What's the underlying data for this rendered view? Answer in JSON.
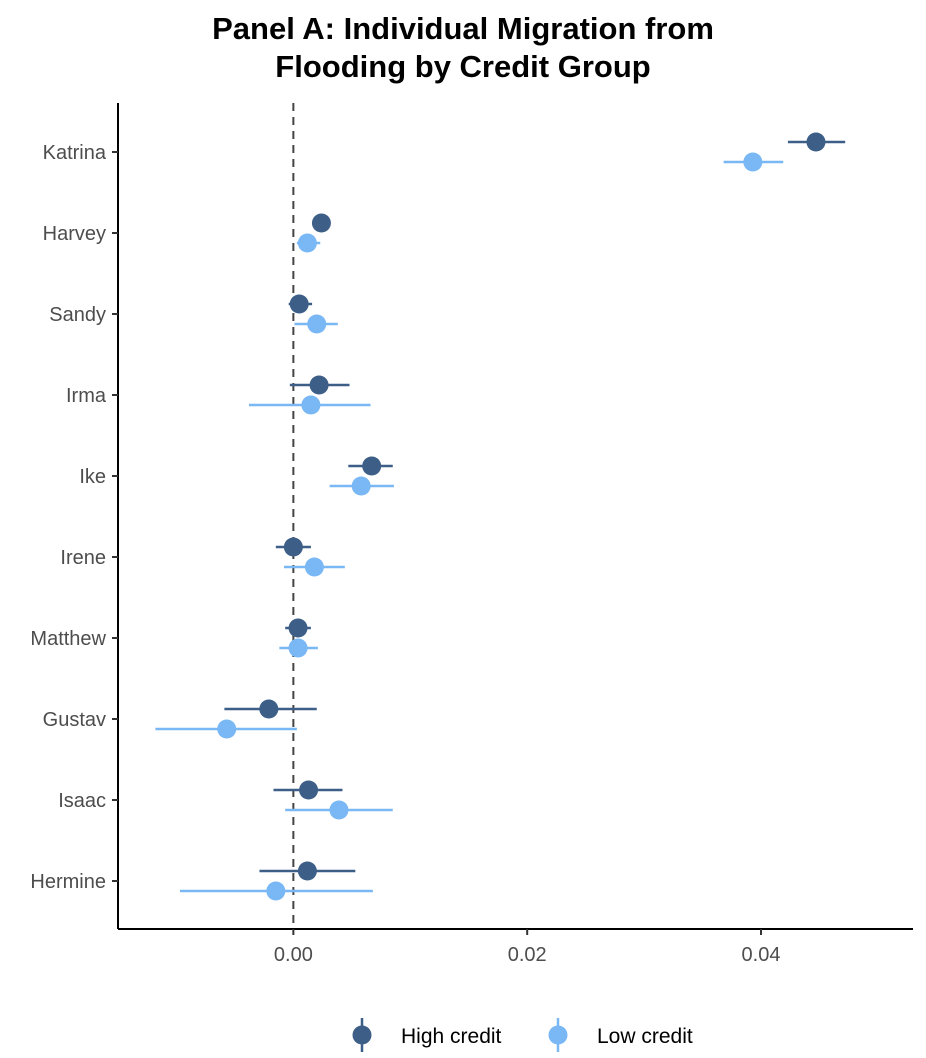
{
  "chart_data": {
    "type": "scatter",
    "subtype": "coefficient-plot-with-error-bars",
    "title": "Panel A: Individual Migration from Flooding by Credit Group",
    "title_lines": [
      "Panel A: Individual Migration from",
      "Flooding by Credit Group"
    ],
    "xlabel": "",
    "ylabel": "",
    "xlim": [
      -0.015,
      0.053
    ],
    "xticks": [
      0.0,
      0.02,
      0.04
    ],
    "xtick_labels": [
      "0.00",
      "0.02",
      "0.04"
    ],
    "reference_line": {
      "x": 0,
      "style": "dashed"
    },
    "grid": false,
    "legend_position": "bottom",
    "categories": [
      "Katrina",
      "Harvey",
      "Sandy",
      "Irma",
      "Ike",
      "Irene",
      "Matthew",
      "Gustav",
      "Isaac",
      "Hermine"
    ],
    "series": [
      {
        "name": "High credit",
        "color": "#3d5f87",
        "values": [
          0.0447,
          0.0024,
          0.0005,
          0.0022,
          0.0067,
          0.0,
          0.0004,
          -0.0021,
          0.0013,
          0.0012
        ],
        "lower": [
          0.0423,
          0.002,
          -0.0004,
          -0.0003,
          0.0047,
          -0.0015,
          -0.0007,
          -0.0059,
          -0.0017,
          -0.0029
        ],
        "upper": [
          0.0472,
          0.0028,
          0.0016,
          0.0048,
          0.0085,
          0.0015,
          0.0015,
          0.002,
          0.0042,
          0.0053
        ]
      },
      {
        "name": "Low credit",
        "color": "#79b8f5",
        "values": [
          0.0393,
          0.0012,
          0.002,
          0.0015,
          0.0058,
          0.0018,
          0.0004,
          -0.0057,
          0.0039,
          -0.0015
        ],
        "lower": [
          0.0368,
          0.0003,
          0.0001,
          -0.0038,
          0.0031,
          -0.0008,
          -0.0012,
          -0.0118,
          -0.0007,
          -0.0097
        ],
        "upper": [
          0.0419,
          0.0023,
          0.0038,
          0.0066,
          0.0086,
          0.0044,
          0.0021,
          0.0003,
          0.0085,
          0.0068
        ]
      }
    ]
  }
}
